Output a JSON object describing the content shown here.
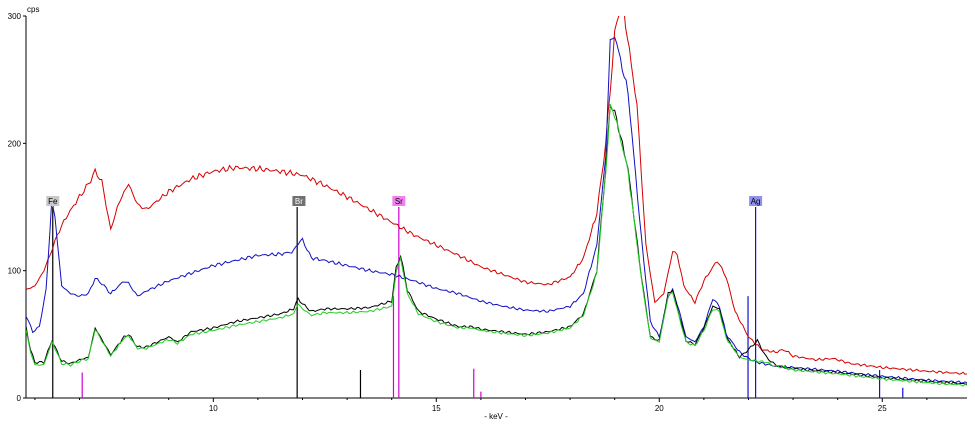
{
  "chart_data": {
    "type": "line",
    "title": "",
    "ylabel": "cps",
    "xlabel": "- keV -",
    "xlim": [
      5.8,
      26.9
    ],
    "ylim": [
      0,
      300
    ],
    "x_ticks": [
      "10",
      "15",
      "20",
      "25"
    ],
    "y_ticks": [
      "0",
      "100",
      "200",
      "300"
    ],
    "grid": false,
    "legend": "none",
    "series": [
      {
        "color": "#d40000",
        "points": [
          [
            5.8,
            85
          ],
          [
            6.0,
            88
          ],
          [
            6.2,
            100
          ],
          [
            6.4,
            118
          ],
          [
            6.5,
            128
          ],
          [
            6.7,
            142
          ],
          [
            7.0,
            158
          ],
          [
            7.2,
            168
          ],
          [
            7.35,
            178
          ],
          [
            7.5,
            170
          ],
          [
            7.7,
            132
          ],
          [
            7.85,
            150
          ],
          [
            8.0,
            162
          ],
          [
            8.1,
            168
          ],
          [
            8.3,
            152
          ],
          [
            8.5,
            148
          ],
          [
            9.0,
            162
          ],
          [
            9.5,
            172
          ],
          [
            10.0,
            178
          ],
          [
            10.5,
            181
          ],
          [
            11.0,
            180
          ],
          [
            11.5,
            178
          ],
          [
            12.0,
            175
          ],
          [
            12.5,
            167
          ],
          [
            13.0,
            158
          ],
          [
            13.5,
            148
          ],
          [
            14.0,
            138
          ],
          [
            14.5,
            128
          ],
          [
            15.0,
            120
          ],
          [
            15.5,
            112
          ],
          [
            16.0,
            103
          ],
          [
            16.5,
            97
          ],
          [
            17.0,
            91
          ],
          [
            17.5,
            89
          ],
          [
            18.0,
            95
          ],
          [
            18.3,
            110
          ],
          [
            18.6,
            145
          ],
          [
            18.8,
            200
          ],
          [
            19.0,
            285
          ],
          [
            19.1,
            305
          ],
          [
            19.2,
            305
          ],
          [
            19.5,
            230
          ],
          [
            19.7,
            120
          ],
          [
            19.9,
            75
          ],
          [
            20.1,
            82
          ],
          [
            20.3,
            115
          ],
          [
            20.4,
            113
          ],
          [
            20.55,
            88
          ],
          [
            20.8,
            75
          ],
          [
            21.0,
            92
          ],
          [
            21.3,
            108
          ],
          [
            21.5,
            95
          ],
          [
            21.7,
            68
          ],
          [
            22.0,
            48
          ],
          [
            22.3,
            38
          ],
          [
            22.6,
            36
          ],
          [
            22.8,
            38
          ],
          [
            23.0,
            33
          ],
          [
            23.5,
            30
          ],
          [
            23.9,
            31
          ],
          [
            24.3,
            27
          ],
          [
            25.0,
            24
          ],
          [
            26.0,
            21
          ],
          [
            26.9,
            19
          ]
        ]
      },
      {
        "color": "#1010c0",
        "points": [
          [
            5.8,
            65
          ],
          [
            5.95,
            52
          ],
          [
            6.1,
            56
          ],
          [
            6.25,
            85
          ],
          [
            6.38,
            155
          ],
          [
            6.45,
            142
          ],
          [
            6.6,
            88
          ],
          [
            6.8,
            82
          ],
          [
            7.0,
            80
          ],
          [
            7.2,
            82
          ],
          [
            7.35,
            94
          ],
          [
            7.5,
            90
          ],
          [
            7.7,
            82
          ],
          [
            8.0,
            92
          ],
          [
            8.1,
            90
          ],
          [
            8.3,
            80
          ],
          [
            8.5,
            84
          ],
          [
            9.0,
            92
          ],
          [
            9.5,
            98
          ],
          [
            10.0,
            104
          ],
          [
            10.5,
            108
          ],
          [
            11.0,
            112
          ],
          [
            11.5,
            113
          ],
          [
            11.8,
            115
          ],
          [
            11.9,
            122
          ],
          [
            12.0,
            124
          ],
          [
            12.2,
            110
          ],
          [
            12.5,
            108
          ],
          [
            13.0,
            104
          ],
          [
            13.5,
            100
          ],
          [
            14.0,
            97
          ],
          [
            14.5,
            92
          ],
          [
            15.0,
            86
          ],
          [
            15.5,
            82
          ],
          [
            16.0,
            76
          ],
          [
            16.5,
            72
          ],
          [
            17.0,
            69
          ],
          [
            17.5,
            68
          ],
          [
            18.0,
            72
          ],
          [
            18.3,
            82
          ],
          [
            18.6,
            120
          ],
          [
            18.8,
            190
          ],
          [
            18.9,
            280
          ],
          [
            19.0,
            285
          ],
          [
            19.3,
            240
          ],
          [
            19.6,
            125
          ],
          [
            19.8,
            60
          ],
          [
            20.0,
            48
          ],
          [
            20.2,
            80
          ],
          [
            20.3,
            85
          ],
          [
            20.45,
            68
          ],
          [
            20.6,
            48
          ],
          [
            20.8,
            44
          ],
          [
            21.0,
            56
          ],
          [
            21.2,
            78
          ],
          [
            21.35,
            72
          ],
          [
            21.5,
            50
          ],
          [
            21.8,
            36
          ],
          [
            22.0,
            31
          ],
          [
            22.2,
            28
          ],
          [
            22.6,
            25
          ],
          [
            23.0,
            24
          ],
          [
            24.0,
            21
          ],
          [
            25.0,
            17
          ],
          [
            26.0,
            14
          ],
          [
            26.9,
            12
          ]
        ]
      },
      {
        "color": "#000000",
        "points": [
          [
            5.8,
            56
          ],
          [
            5.9,
            38
          ],
          [
            6.0,
            28
          ],
          [
            6.2,
            28
          ],
          [
            6.38,
            45
          ],
          [
            6.45,
            40
          ],
          [
            6.6,
            29
          ],
          [
            6.8,
            27
          ],
          [
            7.0,
            30
          ],
          [
            7.2,
            32
          ],
          [
            7.35,
            55
          ],
          [
            7.5,
            46
          ],
          [
            7.7,
            34
          ],
          [
            8.0,
            48
          ],
          [
            8.1,
            50
          ],
          [
            8.3,
            40
          ],
          [
            8.5,
            40
          ],
          [
            9.0,
            48
          ],
          [
            9.2,
            44
          ],
          [
            9.5,
            52
          ],
          [
            10.0,
            55
          ],
          [
            10.5,
            60
          ],
          [
            11.0,
            63
          ],
          [
            11.5,
            66
          ],
          [
            11.8,
            70
          ],
          [
            11.9,
            78
          ],
          [
            12.0,
            74
          ],
          [
            12.2,
            68
          ],
          [
            12.5,
            70
          ],
          [
            13.0,
            70
          ],
          [
            13.5,
            71
          ],
          [
            14.0,
            76
          ],
          [
            14.1,
            102
          ],
          [
            14.2,
            112
          ],
          [
            14.35,
            85
          ],
          [
            14.6,
            68
          ],
          [
            15.0,
            62
          ],
          [
            15.5,
            56
          ],
          [
            15.8,
            56
          ],
          [
            16.0,
            54
          ],
          [
            16.5,
            52
          ],
          [
            17.0,
            50
          ],
          [
            17.5,
            52
          ],
          [
            18.0,
            56
          ],
          [
            18.3,
            66
          ],
          [
            18.6,
            100
          ],
          [
            18.8,
            180
          ],
          [
            18.9,
            230
          ],
          [
            19.0,
            225
          ],
          [
            19.3,
            180
          ],
          [
            19.6,
            95
          ],
          [
            19.8,
            48
          ],
          [
            20.0,
            45
          ],
          [
            20.2,
            82
          ],
          [
            20.3,
            85
          ],
          [
            20.45,
            65
          ],
          [
            20.6,
            45
          ],
          [
            20.8,
            42
          ],
          [
            21.0,
            55
          ],
          [
            21.2,
            72
          ],
          [
            21.35,
            70
          ],
          [
            21.5,
            48
          ],
          [
            21.8,
            32
          ],
          [
            22.0,
            38
          ],
          [
            22.2,
            45
          ],
          [
            22.4,
            32
          ],
          [
            22.6,
            26
          ],
          [
            22.8,
            24
          ],
          [
            23.0,
            23
          ],
          [
            24.0,
            20
          ],
          [
            25.0,
            16
          ],
          [
            26.0,
            13
          ],
          [
            26.9,
            11
          ]
        ]
      },
      {
        "color": "#22cc22",
        "points": [
          [
            5.8,
            54
          ],
          [
            5.9,
            36
          ],
          [
            6.0,
            26
          ],
          [
            6.2,
            26
          ],
          [
            6.38,
            44
          ],
          [
            6.45,
            39
          ],
          [
            6.6,
            27
          ],
          [
            6.8,
            26
          ],
          [
            7.0,
            29
          ],
          [
            7.2,
            31
          ],
          [
            7.35,
            54
          ],
          [
            7.5,
            45
          ],
          [
            7.7,
            33
          ],
          [
            8.0,
            47
          ],
          [
            8.1,
            49
          ],
          [
            8.3,
            39
          ],
          [
            8.5,
            39
          ],
          [
            9.0,
            46
          ],
          [
            9.2,
            43
          ],
          [
            9.5,
            50
          ],
          [
            10.0,
            53
          ],
          [
            10.5,
            57
          ],
          [
            11.0,
            60
          ],
          [
            11.5,
            63
          ],
          [
            11.8,
            66
          ],
          [
            11.9,
            74
          ],
          [
            12.0,
            70
          ],
          [
            12.2,
            65
          ],
          [
            12.5,
            67
          ],
          [
            13.0,
            67
          ],
          [
            13.5,
            68
          ],
          [
            14.0,
            72
          ],
          [
            14.1,
            99
          ],
          [
            14.2,
            110
          ],
          [
            14.35,
            82
          ],
          [
            14.6,
            66
          ],
          [
            15.0,
            60
          ],
          [
            15.5,
            55
          ],
          [
            15.8,
            55
          ],
          [
            16.0,
            53
          ],
          [
            16.5,
            51
          ],
          [
            17.0,
            49
          ],
          [
            17.5,
            51
          ],
          [
            18.0,
            55
          ],
          [
            18.3,
            65
          ],
          [
            18.6,
            98
          ],
          [
            18.8,
            178
          ],
          [
            18.9,
            228
          ],
          [
            19.0,
            223
          ],
          [
            19.3,
            178
          ],
          [
            19.6,
            93
          ],
          [
            19.8,
            47
          ],
          [
            20.0,
            44
          ],
          [
            20.2,
            80
          ],
          [
            20.3,
            83
          ],
          [
            20.45,
            63
          ],
          [
            20.6,
            44
          ],
          [
            20.8,
            41
          ],
          [
            21.0,
            53
          ],
          [
            21.2,
            70
          ],
          [
            21.35,
            68
          ],
          [
            21.5,
            47
          ],
          [
            21.8,
            32
          ],
          [
            22.0,
            30
          ],
          [
            22.4,
            28
          ],
          [
            22.6,
            25
          ],
          [
            22.8,
            24
          ],
          [
            23.0,
            22
          ],
          [
            24.0,
            19
          ],
          [
            25.0,
            15
          ],
          [
            26.0,
            12
          ],
          [
            26.9,
            10
          ]
        ]
      }
    ],
    "element_markers": [
      {
        "label": "Fe",
        "x": 6.4,
        "height": 150,
        "color": "#000000",
        "label_bg": "#c8c8c8",
        "label_fg": "#000000"
      },
      {
        "label": "Br",
        "x": 11.92,
        "height": 150,
        "color": "#000000",
        "label_bg": "#707070",
        "label_fg": "#ffffff"
      },
      {
        "label": "Sr",
        "x": 14.16,
        "height": 150,
        "color": "#d000d0",
        "label_bg": "#f080f0",
        "label_fg": "#000000"
      },
      {
        "label": "Ag",
        "x": 22.16,
        "height": 150,
        "color": "#1010d0",
        "label_bg": "#9090ee",
        "label_fg": "#000000"
      }
    ],
    "marker_lines": [
      {
        "x": 6.4,
        "height": 150,
        "color": "#000000"
      },
      {
        "x": 7.06,
        "height": 20,
        "color": "#d000d0"
      },
      {
        "x": 11.88,
        "height": 150,
        "color": "#000000"
      },
      {
        "x": 13.3,
        "height": 22,
        "color": "#000000"
      },
      {
        "x": 14.04,
        "height": 80,
        "color": "#d000d0"
      },
      {
        "x": 14.16,
        "height": 150,
        "color": "#d000d0"
      },
      {
        "x": 15.84,
        "height": 23,
        "color": "#d000d0"
      },
      {
        "x": 16.0,
        "height": 5,
        "color": "#d000d0"
      },
      {
        "x": 21.99,
        "height": 80,
        "color": "#1010d0"
      },
      {
        "x": 22.16,
        "height": 150,
        "color": "#1010d0"
      },
      {
        "x": 24.94,
        "height": 22,
        "color": "#1010d0"
      },
      {
        "x": 25.46,
        "height": 8,
        "color": "#1010d0"
      }
    ]
  }
}
